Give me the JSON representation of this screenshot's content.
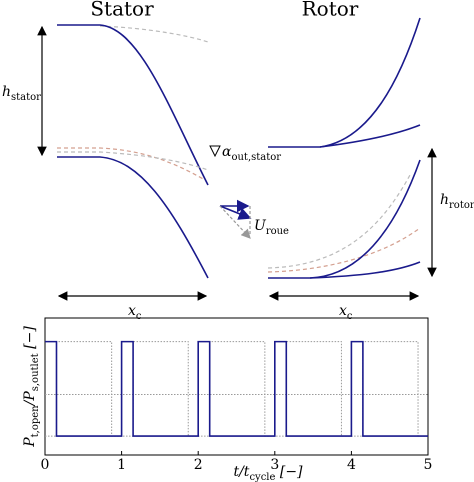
{
  "diagram": {
    "stator_title": "Stator",
    "rotor_title": "Rotor",
    "h_stator": {
      "main": "h",
      "sub": "stator"
    },
    "alpha_out": {
      "main": "α",
      "sub": "out,stator"
    },
    "u_roue": {
      "main": "U",
      "sub": "roue"
    },
    "h_rotor": {
      "main": "h",
      "sub": "rotor"
    },
    "xc_stator": {
      "main": "x",
      "sub": "c"
    },
    "xc_rotor": {
      "main": "x",
      "sub": "c"
    }
  },
  "chart_data": {
    "type": "line",
    "x_label": [
      {
        "text": "t/t",
        "sub": false
      },
      {
        "text": "cycle",
        "sub": true
      },
      {
        "text": " [−]",
        "sub": false
      }
    ],
    "y_label": [
      {
        "text": "P",
        "sub": false
      },
      {
        "text": "t,open",
        "sub": true
      },
      {
        "text": "/P",
        "sub": false
      },
      {
        "text": "s,outlet",
        "sub": true
      },
      {
        "text": " [−]",
        "sub": false
      }
    ],
    "xlim": [
      0,
      5
    ],
    "xticks": [
      0,
      1,
      2,
      3,
      4,
      5
    ],
    "ylim": [
      -0.2,
      1.25
    ],
    "series": [
      {
        "color": "#9a9a9a",
        "dash": "dotted",
        "x": [
          0,
          0.15,
          0.15,
          0.87,
          0.87,
          1.15,
          1.15,
          1.87,
          1.87,
          2.15,
          2.15,
          2.87,
          2.87,
          3.15,
          3.15,
          3.87,
          3.87,
          4.15,
          4.15,
          4.87,
          4.87,
          5
        ],
        "values": [
          0,
          0,
          1,
          1,
          0,
          0,
          1,
          1,
          0,
          0,
          1,
          1,
          0,
          0,
          1,
          1,
          0,
          0,
          1,
          1,
          0,
          0
        ]
      },
      {
        "color": "#9a9a9a",
        "dash": "dotted",
        "x": [
          0,
          5
        ],
        "values": [
          0.44,
          0.44
        ]
      },
      {
        "color": "#1a1a8c",
        "dash": "solid",
        "x": [
          0,
          0.15,
          0.15,
          1,
          1,
          1.15,
          1.15,
          2,
          2,
          2.15,
          2.15,
          3,
          3,
          3.15,
          3.15,
          4,
          4,
          4.15,
          4.15,
          5
        ],
        "values": [
          1,
          1,
          0,
          0,
          1,
          1,
          0,
          0,
          1,
          1,
          0,
          0,
          1,
          1,
          0,
          0,
          1,
          1,
          0,
          0
        ]
      }
    ]
  }
}
